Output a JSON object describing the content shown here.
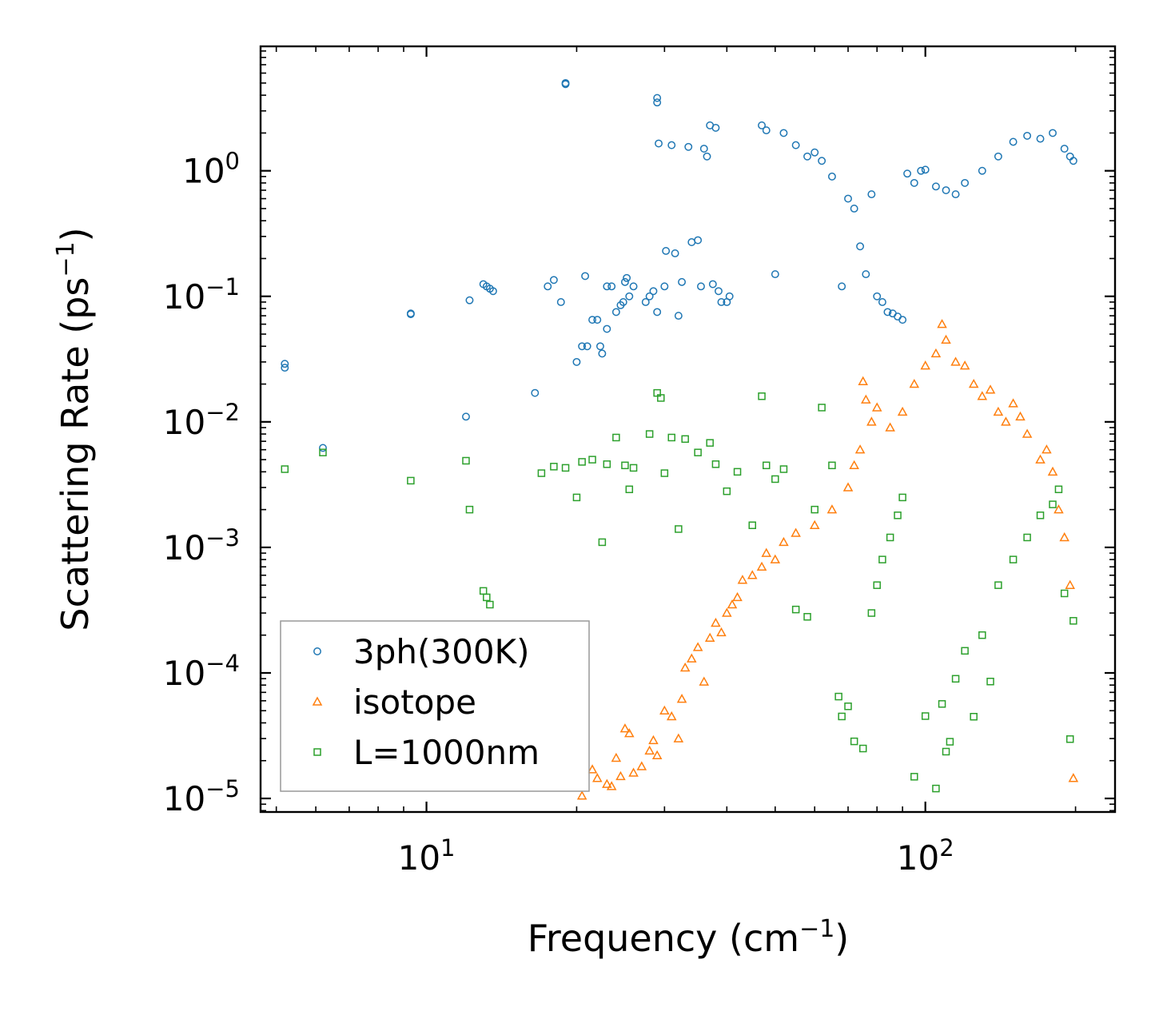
{
  "chart_data": {
    "type": "scatter",
    "title": "",
    "xlabel": "Frequency (cm",
    "xlabel_sup": "−1",
    "xlabel_end": ")",
    "ylabel": "Scattering Rate (ps",
    "ylabel_sup": "−1",
    "ylabel_end": ")",
    "xscale": "log",
    "yscale": "log",
    "xlim": [
      4.65,
      240
    ],
    "ylim": [
      7.8e-06,
      9.8
    ],
    "grid": false,
    "legend_position": "bottom-left",
    "x_ticks": [
      {
        "value": 10,
        "base": "10",
        "exp": "1"
      },
      {
        "value": 100,
        "base": "10",
        "exp": "2"
      }
    ],
    "y_ticks": [
      {
        "value": 1,
        "base": "10",
        "exp": "0"
      },
      {
        "value": 0.1,
        "base": "10",
        "exp": "−1"
      },
      {
        "value": 0.01,
        "base": "10",
        "exp": "−2"
      },
      {
        "value": 0.001,
        "base": "10",
        "exp": "−3"
      },
      {
        "value": 0.0001,
        "base": "10",
        "exp": "−4"
      },
      {
        "value": 1e-05,
        "base": "10",
        "exp": "−5"
      }
    ],
    "series": [
      {
        "name": "3ph(300K)",
        "marker": "circle",
        "color": "#1f77b4",
        "points": [
          [
            5.2,
            0.029
          ],
          [
            5.2,
            0.027
          ],
          [
            6.2,
            0.0062
          ],
          [
            9.3,
            0.073
          ],
          [
            9.3,
            0.072
          ],
          [
            12.0,
            0.011
          ],
          [
            12.2,
            0.093
          ],
          [
            13.0,
            0.125
          ],
          [
            13.2,
            0.12
          ],
          [
            13.4,
            0.115
          ],
          [
            13.6,
            0.11
          ],
          [
            16.5,
            0.017
          ],
          [
            17.5,
            0.12
          ],
          [
            18.0,
            0.135
          ],
          [
            18.6,
            0.09
          ],
          [
            19.0,
            5.0
          ],
          [
            19.0,
            4.9
          ],
          [
            20.0,
            0.03
          ],
          [
            20.5,
            0.04
          ],
          [
            20.8,
            0.145
          ],
          [
            21.0,
            0.04
          ],
          [
            21.5,
            0.065
          ],
          [
            22.0,
            0.065
          ],
          [
            22.3,
            0.04
          ],
          [
            22.5,
            0.035
          ],
          [
            23.0,
            0.055
          ],
          [
            23.0,
            0.12
          ],
          [
            23.5,
            0.12
          ],
          [
            24.0,
            0.075
          ],
          [
            24.5,
            0.085
          ],
          [
            24.8,
            0.09
          ],
          [
            25.0,
            0.13
          ],
          [
            25.2,
            0.14
          ],
          [
            25.5,
            0.1
          ],
          [
            26.0,
            0.12
          ],
          [
            27.5,
            0.09
          ],
          [
            28.0,
            0.1
          ],
          [
            28.5,
            0.11
          ],
          [
            29.0,
            0.075
          ],
          [
            29.0,
            3.8
          ],
          [
            29.0,
            3.5
          ],
          [
            29.2,
            1.65
          ],
          [
            30.0,
            0.12
          ],
          [
            30.2,
            0.23
          ],
          [
            31.0,
            1.6
          ],
          [
            31.5,
            0.22
          ],
          [
            32.0,
            0.07
          ],
          [
            32.5,
            0.13
          ],
          [
            33.5,
            1.55
          ],
          [
            34.0,
            0.27
          ],
          [
            35.0,
            0.28
          ],
          [
            35.5,
            0.12
          ],
          [
            36.0,
            1.5
          ],
          [
            36.5,
            1.3
          ],
          [
            37.0,
            2.3
          ],
          [
            37.5,
            0.125
          ],
          [
            38.0,
            2.2
          ],
          [
            38.5,
            0.11
          ],
          [
            39.0,
            0.09
          ],
          [
            40.0,
            0.09
          ],
          [
            40.5,
            0.1
          ],
          [
            47.0,
            2.3
          ],
          [
            48.0,
            2.1
          ],
          [
            50.0,
            0.15
          ],
          [
            52.0,
            2.0
          ],
          [
            55.0,
            1.6
          ],
          [
            58.0,
            1.3
          ],
          [
            60.0,
            1.4
          ],
          [
            62.0,
            1.2
          ],
          [
            65.0,
            0.9
          ],
          [
            68.0,
            0.12
          ],
          [
            70.0,
            0.6
          ],
          [
            72.0,
            0.5
          ],
          [
            74.0,
            0.25
          ],
          [
            76.0,
            0.15
          ],
          [
            78.0,
            0.65
          ],
          [
            80.0,
            0.1
          ],
          [
            82.0,
            0.09
          ],
          [
            84.0,
            0.075
          ],
          [
            86.0,
            0.073
          ],
          [
            88.0,
            0.069
          ],
          [
            90.0,
            0.065
          ],
          [
            92.0,
            0.95
          ],
          [
            95.0,
            0.8
          ],
          [
            98.0,
            1.0
          ],
          [
            100.0,
            1.02
          ],
          [
            105.0,
            0.75
          ],
          [
            110.0,
            0.7
          ],
          [
            115.0,
            0.65
          ],
          [
            120.0,
            0.8
          ],
          [
            130.0,
            1.0
          ],
          [
            140.0,
            1.3
          ],
          [
            150.0,
            1.7
          ],
          [
            160.0,
            1.9
          ],
          [
            170.0,
            1.8
          ],
          [
            180.0,
            2.0
          ],
          [
            190.0,
            1.5
          ],
          [
            195.0,
            1.3
          ],
          [
            198.0,
            1.2
          ]
        ]
      },
      {
        "name": "isotope",
        "marker": "triangle",
        "color": "#ff7f0e",
        "points": [
          [
            20.5,
            1.05e-05
          ],
          [
            21.5,
            1.7e-05
          ],
          [
            22.0,
            1.45e-05
          ],
          [
            23.0,
            1.3e-05
          ],
          [
            23.5,
            1.25e-05
          ],
          [
            24.0,
            2.1e-05
          ],
          [
            24.5,
            1.5e-05
          ],
          [
            25.0,
            3.6e-05
          ],
          [
            25.5,
            3.3e-05
          ],
          [
            26.0,
            1.6e-05
          ],
          [
            27.0,
            1.8e-05
          ],
          [
            28.0,
            2.4e-05
          ],
          [
            28.5,
            2.9e-05
          ],
          [
            29.0,
            2.2e-05
          ],
          [
            30.0,
            5e-05
          ],
          [
            31.0,
            4.5e-05
          ],
          [
            32.0,
            3e-05
          ],
          [
            32.5,
            6.2e-05
          ],
          [
            33.0,
            0.00011
          ],
          [
            34.0,
            0.00013
          ],
          [
            35.0,
            0.00016
          ],
          [
            36.0,
            8.5e-05
          ],
          [
            37.0,
            0.00019
          ],
          [
            38.0,
            0.00025
          ],
          [
            39.0,
            0.00021
          ],
          [
            40.0,
            0.0003
          ],
          [
            41.0,
            0.00035
          ],
          [
            42.0,
            0.0004
          ],
          [
            43.0,
            0.00055
          ],
          [
            45.0,
            0.0006
          ],
          [
            47.0,
            0.0007
          ],
          [
            48.0,
            0.0009
          ],
          [
            50.0,
            0.0008
          ],
          [
            52.0,
            0.0011
          ],
          [
            55.0,
            0.0013
          ],
          [
            60.0,
            0.0015
          ],
          [
            65.0,
            0.002
          ],
          [
            70.0,
            0.003
          ],
          [
            72.0,
            0.0045
          ],
          [
            74.0,
            0.006
          ],
          [
            75.0,
            0.021
          ],
          [
            76.0,
            0.015
          ],
          [
            78.0,
            0.01
          ],
          [
            80.0,
            0.013
          ],
          [
            85.0,
            0.009
          ],
          [
            90.0,
            0.012
          ],
          [
            95.0,
            0.02
          ],
          [
            100.0,
            0.028
          ],
          [
            105.0,
            0.035
          ],
          [
            108.0,
            0.06
          ],
          [
            110.0,
            0.045
          ],
          [
            115.0,
            0.03
          ],
          [
            120.0,
            0.028
          ],
          [
            125.0,
            0.02
          ],
          [
            130.0,
            0.016
          ],
          [
            135.0,
            0.018
          ],
          [
            140.0,
            0.012
          ],
          [
            145.0,
            0.01
          ],
          [
            150.0,
            0.014
          ],
          [
            155.0,
            0.011
          ],
          [
            160.0,
            0.008
          ],
          [
            170.0,
            0.005
          ],
          [
            175.0,
            0.006
          ],
          [
            180.0,
            0.004
          ],
          [
            185.0,
            0.002
          ],
          [
            190.0,
            0.0012
          ],
          [
            195.0,
            0.0005
          ],
          [
            198.0,
            1.45e-05
          ]
        ]
      },
      {
        "name": "L=1000nm",
        "marker": "square",
        "color": "#2ca02c",
        "points": [
          [
            5.2,
            0.0042
          ],
          [
            6.2,
            0.0057
          ],
          [
            9.3,
            0.0034
          ],
          [
            12.0,
            0.0049
          ],
          [
            12.2,
            0.002
          ],
          [
            13.0,
            0.00045
          ],
          [
            13.2,
            0.0004
          ],
          [
            13.4,
            0.00035
          ],
          [
            17.0,
            0.0039
          ],
          [
            18.0,
            0.0044
          ],
          [
            19.0,
            0.0043
          ],
          [
            20.0,
            0.0025
          ],
          [
            20.5,
            0.0048
          ],
          [
            21.5,
            0.005
          ],
          [
            22.5,
            0.0011
          ],
          [
            23.0,
            0.0046
          ],
          [
            24.0,
            0.0075
          ],
          [
            25.0,
            0.0045
          ],
          [
            25.5,
            0.0029
          ],
          [
            26.0,
            0.0043
          ],
          [
            28.0,
            0.008
          ],
          [
            29.0,
            0.017
          ],
          [
            29.5,
            0.0155
          ],
          [
            30.0,
            0.0039
          ],
          [
            31.0,
            0.0075
          ],
          [
            32.0,
            0.0014
          ],
          [
            33.0,
            0.0073
          ],
          [
            35.0,
            0.0057
          ],
          [
            37.0,
            0.0068
          ],
          [
            38.0,
            0.0046
          ],
          [
            40.0,
            0.0028
          ],
          [
            42.0,
            0.004
          ],
          [
            45.0,
            0.0015
          ],
          [
            47.0,
            0.016
          ],
          [
            48.0,
            0.0045
          ],
          [
            50.0,
            0.0035
          ],
          [
            52.0,
            0.0042
          ],
          [
            55.0,
            0.00032
          ],
          [
            58.0,
            0.00028
          ],
          [
            60.0,
            0.002
          ],
          [
            62.0,
            0.013
          ],
          [
            65.0,
            0.0045
          ],
          [
            67.0,
            6.48e-05
          ],
          [
            68.0,
            4.5e-05
          ],
          [
            70.0,
            5.42e-05
          ],
          [
            72.0,
            2.85e-05
          ],
          [
            75.0,
            2.5e-05
          ],
          [
            78.0,
            0.0003
          ],
          [
            80.0,
            0.0005
          ],
          [
            82.0,
            0.0008
          ],
          [
            85.0,
            0.0012
          ],
          [
            88.0,
            0.0018
          ],
          [
            90.0,
            0.0025
          ],
          [
            95.0,
            1.49e-05
          ],
          [
            100.0,
            4.53e-05
          ],
          [
            105.0,
            1.2e-05
          ],
          [
            108.0,
            5.66e-05
          ],
          [
            110.0,
            2.36e-05
          ],
          [
            112.0,
            2.83e-05
          ],
          [
            115.0,
            8.98e-05
          ],
          [
            120.0,
            0.00015
          ],
          [
            125.0,
            4.48e-05
          ],
          [
            130.0,
            0.0002
          ],
          [
            135.0,
            8.54e-05
          ],
          [
            140.0,
            0.0005
          ],
          [
            150.0,
            0.0008
          ],
          [
            160.0,
            0.0012
          ],
          [
            170.0,
            0.0018
          ],
          [
            180.0,
            0.0022
          ],
          [
            185.0,
            0.0029
          ],
          [
            190.0,
            0.00043
          ],
          [
            195.0,
            2.97e-05
          ],
          [
            198.0,
            0.00026
          ]
        ]
      }
    ]
  }
}
